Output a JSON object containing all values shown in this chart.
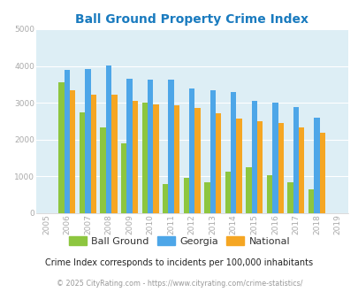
{
  "title": "Ball Ground Property Crime Index",
  "years": [
    2005,
    2006,
    2007,
    2008,
    2009,
    2010,
    2011,
    2012,
    2013,
    2014,
    2015,
    2016,
    2017,
    2018,
    2019
  ],
  "ball_ground": [
    null,
    3560,
    2730,
    2340,
    1900,
    3000,
    790,
    970,
    830,
    1130,
    1260,
    1020,
    850,
    650,
    null
  ],
  "georgia": [
    null,
    3900,
    3910,
    4020,
    3660,
    3630,
    3630,
    3400,
    3340,
    3290,
    3060,
    3010,
    2890,
    2590,
    null
  ],
  "national": [
    null,
    3340,
    3230,
    3210,
    3040,
    2950,
    2920,
    2870,
    2720,
    2580,
    2490,
    2450,
    2340,
    2190,
    null
  ],
  "ball_ground_color": "#8dc63f",
  "georgia_color": "#4da6e8",
  "national_color": "#f5a623",
  "bg_color": "#ddeef5",
  "ylim": [
    0,
    5000
  ],
  "yticks": [
    0,
    1000,
    2000,
    3000,
    4000,
    5000
  ],
  "bar_width": 0.27,
  "legend_labels": [
    "Ball Ground",
    "Georgia",
    "National"
  ],
  "subtitle": "Crime Index corresponds to incidents per 100,000 inhabitants",
  "footer": "© 2025 CityRating.com - https://www.cityrating.com/crime-statistics/",
  "title_color": "#1a7bbf",
  "subtitle_color": "#222222",
  "footer_color": "#999999",
  "grid_color": "#e8e8e8",
  "tick_color": "#aaaaaa"
}
